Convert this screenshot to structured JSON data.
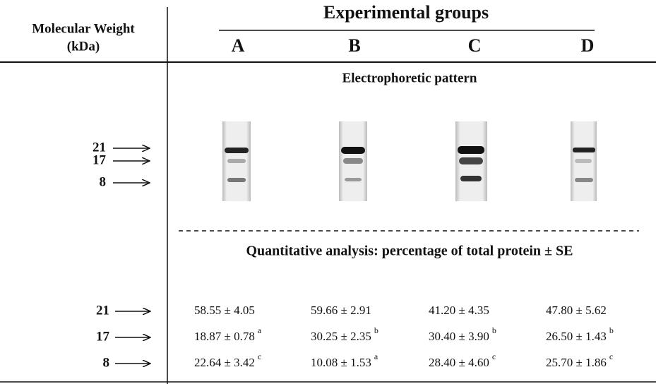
{
  "header": {
    "mw_label": "Molecular Weight",
    "mw_unit": "(kDa)",
    "groups_title": "Experimental groups",
    "groups": [
      "A",
      "B",
      "C",
      "D"
    ]
  },
  "gel": {
    "title": "Electrophoretic pattern",
    "markers": [
      "21",
      "17",
      "8"
    ]
  },
  "quantitative": {
    "title": "Quantitative analysis: percentage of total protein ± SE",
    "rows": [
      {
        "label": "21",
        "cells": [
          {
            "text": "58.55 ± 4.05"
          },
          {
            "text": "59.66 ± 2.91"
          },
          {
            "text": "41.20 ± 4.35"
          },
          {
            "text": "47.80 ± 5.62"
          }
        ]
      },
      {
        "label": "17",
        "cells": [
          {
            "text": "18.87 ± 0.78",
            "sup": "a"
          },
          {
            "text": "30.25 ± 2.35",
            "sup": "b"
          },
          {
            "text": "30.40 ± 3.90",
            "sup": "b"
          },
          {
            "text": "26.50 ± 1.43",
            "sup": "b"
          }
        ]
      },
      {
        "label": "8",
        "cells": [
          {
            "text": "22.64 ± 3.42",
            "sup": "c"
          },
          {
            "text": "10.08 ± 1.53",
            "sup": "a"
          },
          {
            "text": "28.40 ± 4.60",
            "sup": "c"
          },
          {
            "text": "25.70 ± 1.86",
            "sup": "c"
          }
        ]
      }
    ]
  }
}
